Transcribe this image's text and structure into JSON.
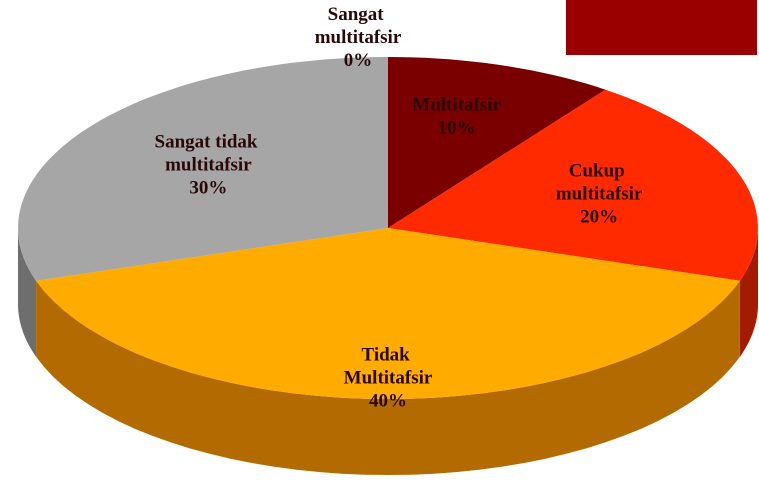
{
  "chart_data": {
    "type": "pie",
    "categories": [
      "Sangat multitafsir",
      "Multitafsir",
      "Cukup multitafsir",
      "Tidak Multitafsir",
      "Sangat tidak multitafsir"
    ],
    "values": [
      0,
      10,
      20,
      40,
      30
    ],
    "value_labels": [
      "0%",
      "10%",
      "20%",
      "40%",
      "30%"
    ],
    "colors": [
      "#c00000",
      "#7a0000",
      "#ff2a00",
      "#ffab00",
      "#a6a6a6"
    ],
    "side_colors": [
      "#800000",
      "#4a0000",
      "#a31b00",
      "#b36a00",
      "#6e6e6e"
    ]
  }
}
